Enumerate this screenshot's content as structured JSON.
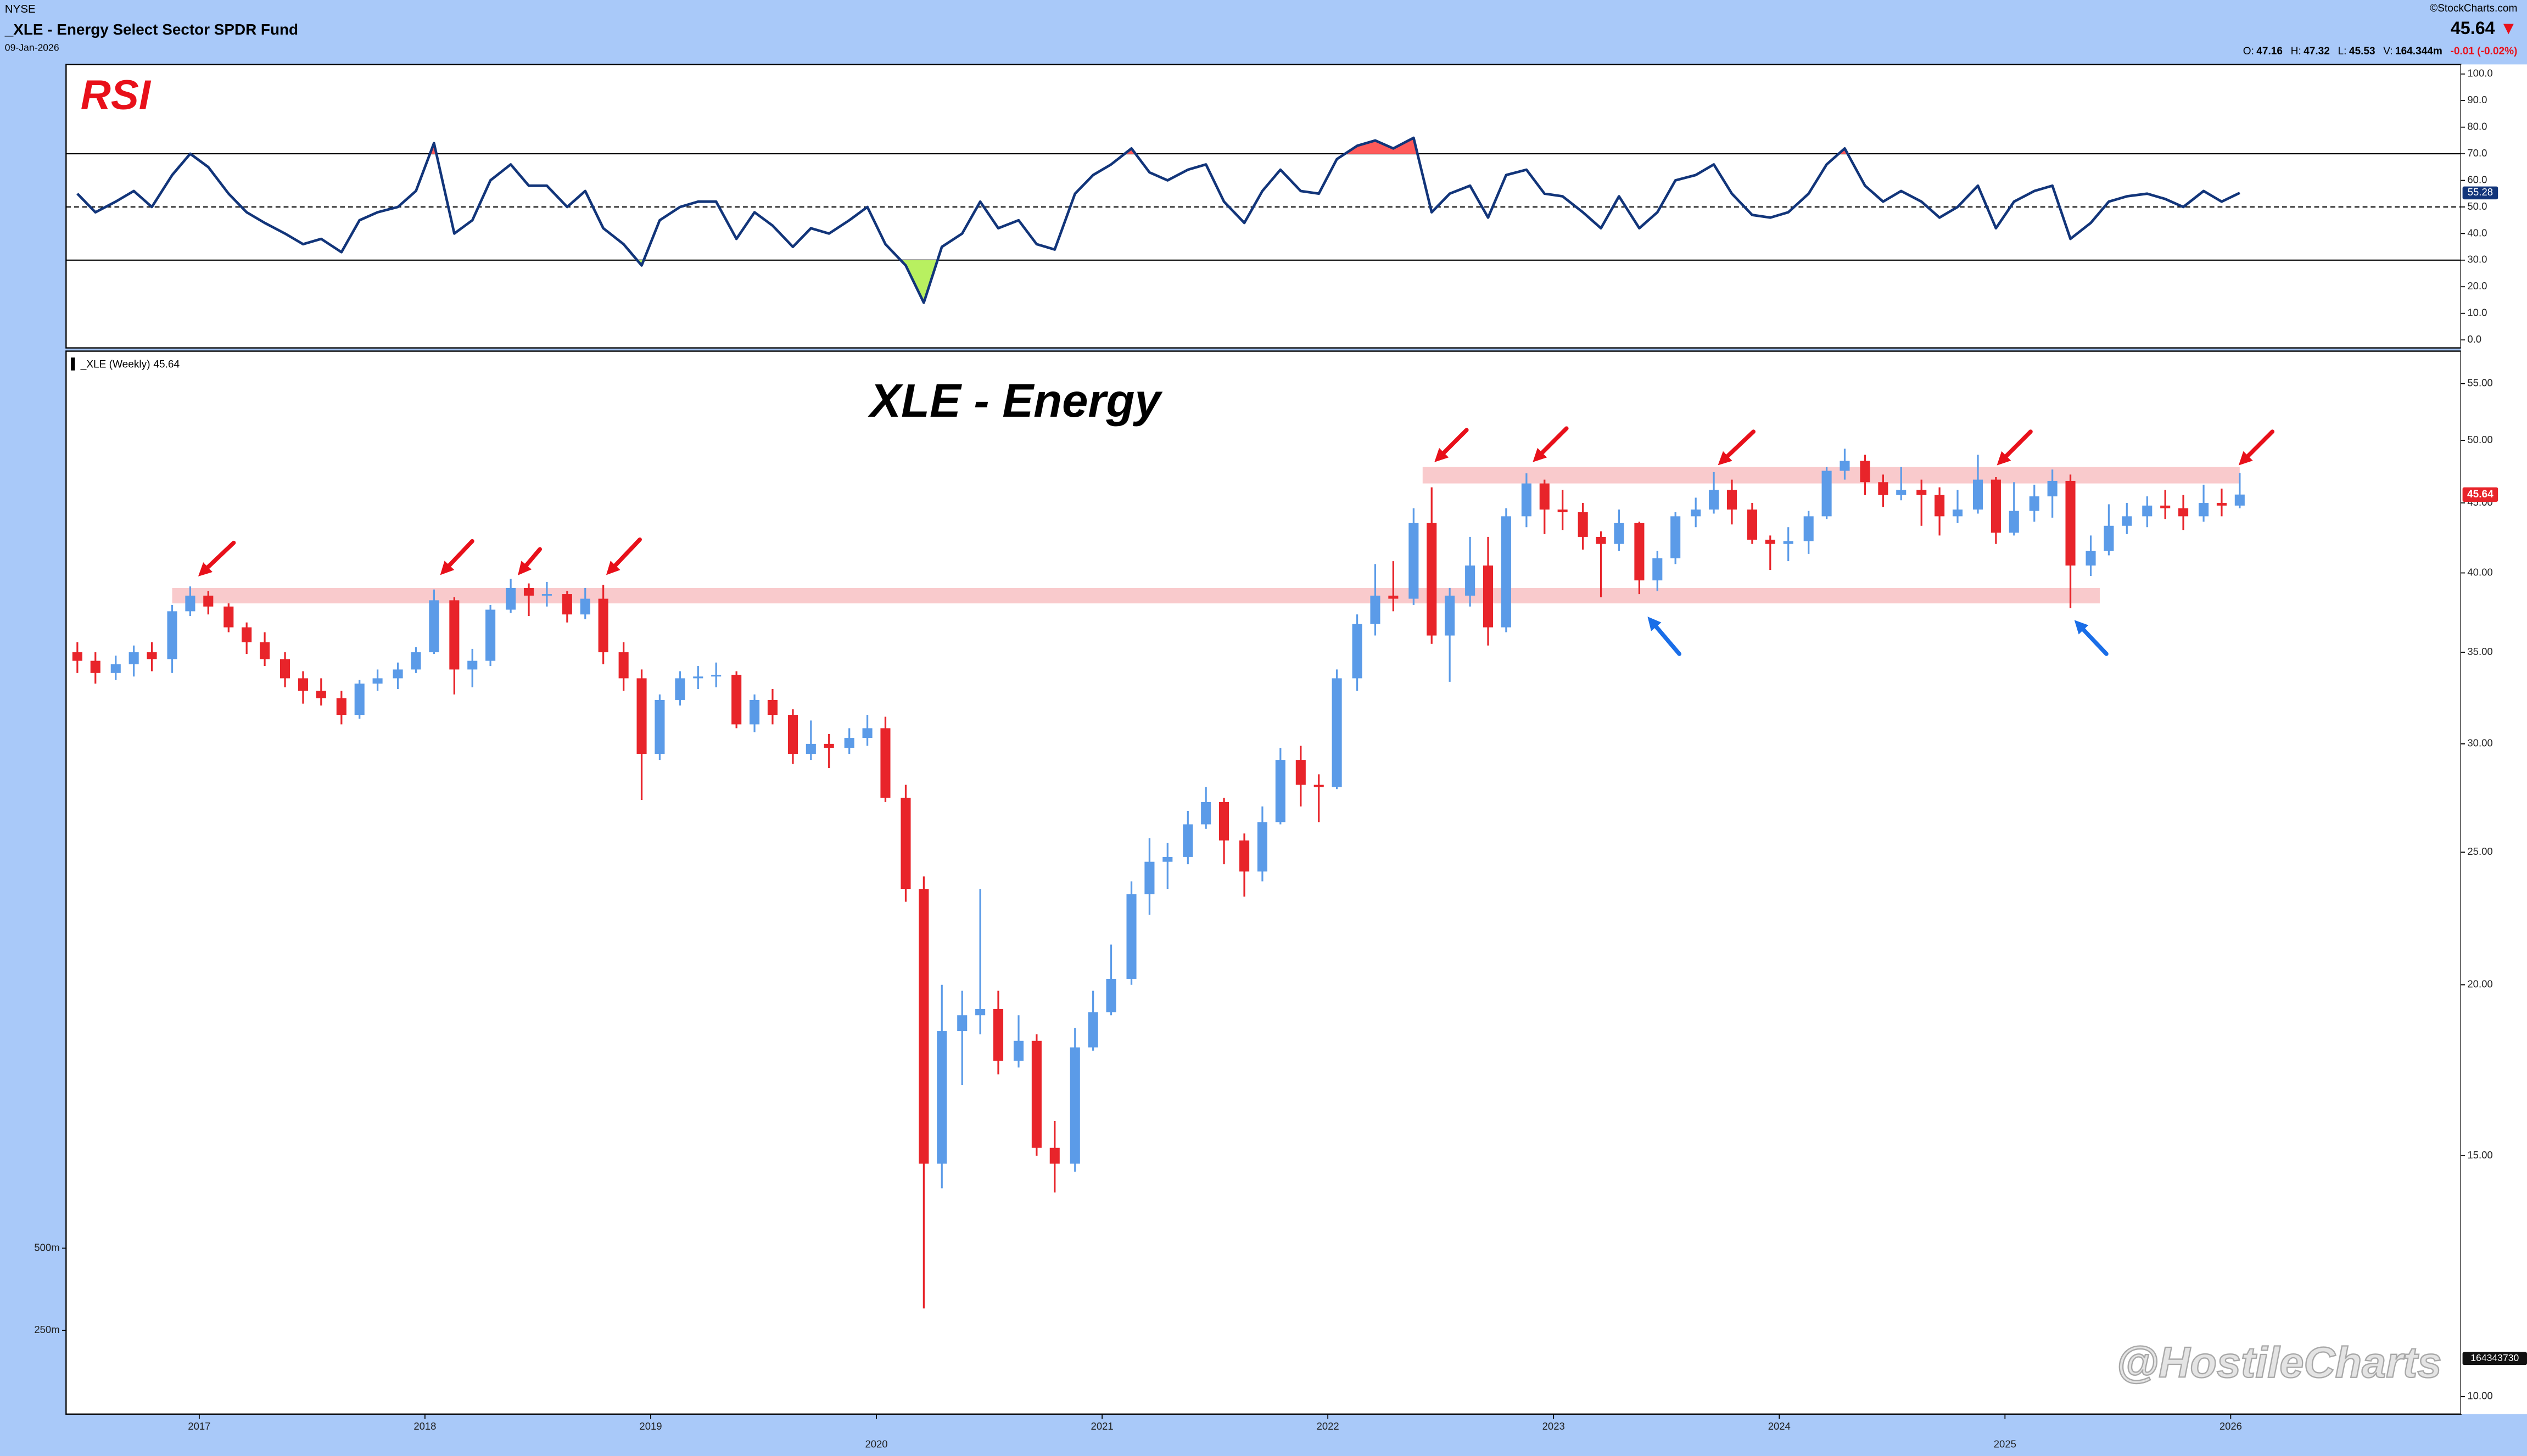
{
  "header": {
    "exchange": "NYSE",
    "title": "_XLE - Energy Select Sector SPDR Fund",
    "date": "09-Jan-2026",
    "source": "©StockCharts.com",
    "direction": "▼",
    "quote": [
      {
        "label": "O:",
        "value": 47.16
      },
      {
        "label": "H:",
        "value": 47.32
      },
      {
        "label": "L:",
        "value": 45.53
      },
      {
        "label": "V:",
        "value": "164.344m"
      }
    ],
    "change": "-0.01 (-0.02%)"
  },
  "chart_data": [
    {
      "type": "line",
      "title": "RSI",
      "series": [
        {
          "color": "#12357a",
          "values": [
            55,
            48,
            52,
            56,
            50,
            62,
            70,
            65,
            55,
            48,
            44,
            40,
            36,
            38,
            33,
            45,
            48,
            50,
            56,
            74,
            40,
            45,
            60,
            66,
            58,
            58,
            50,
            56,
            42,
            36,
            28,
            45,
            50,
            52,
            52,
            38,
            48,
            43,
            35,
            42,
            40,
            45,
            50,
            36,
            28,
            14,
            35,
            40,
            52,
            42,
            45,
            36,
            34,
            55,
            62,
            66,
            72,
            63,
            60,
            64,
            66,
            52,
            44,
            56,
            64,
            56,
            55,
            68,
            73,
            75,
            72,
            76,
            48,
            55,
            58,
            46,
            62,
            64,
            55,
            54,
            48,
            42,
            54,
            42,
            48,
            60,
            62,
            66,
            55,
            47,
            46,
            48,
            55,
            66,
            72,
            58,
            52,
            56,
            52,
            46,
            50,
            58,
            42,
            52,
            56,
            58,
            38,
            44,
            52,
            54,
            55,
            53,
            50,
            56,
            52,
            55.28
          ]
        }
      ],
      "ylim": [
        -3,
        103.6
      ],
      "yticks": [
        {
          "value": 0,
          "label": "0.0"
        },
        {
          "value": 10,
          "label": "10.0"
        },
        {
          "value": 20,
          "label": "20.0"
        },
        {
          "value": 30,
          "label": "30.0"
        },
        {
          "value": 40,
          "label": "40.0"
        },
        {
          "value": 50,
          "label": "50.0"
        },
        {
          "value": 60,
          "label": "60.0"
        },
        {
          "value": 70,
          "label": "70.0"
        },
        {
          "value": 80,
          "label": "80.0"
        },
        {
          "value": 90,
          "label": "90.0"
        },
        {
          "value": 100,
          "label": "100.0"
        }
      ],
      "oversold": 30,
      "midline": 50,
      "overbought": 70,
      "oversold_color": "#b8f060",
      "overbought_color": "#ff5a5a"
    },
    {
      "type": "candlestick",
      "title": "XLE - Energy",
      "legend": "_XLE (Weekly)",
      "x": [
        2016.46,
        2016.54,
        2016.63,
        2016.71,
        2016.79,
        2016.88,
        2016.96,
        2017.04,
        2017.13,
        2017.21,
        2017.29,
        2017.38,
        2017.46,
        2017.54,
        2017.63,
        2017.71,
        2017.79,
        2017.88,
        2017.96,
        2018.04,
        2018.13,
        2018.21,
        2018.29,
        2018.38,
        2018.46,
        2018.54,
        2018.63,
        2018.71,
        2018.79,
        2018.88,
        2018.96,
        2019.04,
        2019.13,
        2019.21,
        2019.29,
        2019.38,
        2019.46,
        2019.54,
        2019.63,
        2019.71,
        2019.79,
        2019.88,
        2019.96,
        2020.04,
        2020.13,
        2020.21,
        2020.29,
        2020.38,
        2020.46,
        2020.54,
        2020.63,
        2020.71,
        2020.79,
        2020.88,
        2020.96,
        2021.04,
        2021.13,
        2021.21,
        2021.29,
        2021.38,
        2021.46,
        2021.54,
        2021.63,
        2021.71,
        2021.79,
        2021.88,
        2021.96,
        2022.04,
        2022.13,
        2022.21,
        2022.29,
        2022.38,
        2022.46,
        2022.54,
        2022.63,
        2022.71,
        2022.79,
        2022.88,
        2022.96,
        2023.04,
        2023.13,
        2023.21,
        2023.29,
        2023.38,
        2023.46,
        2023.54,
        2023.63,
        2023.71,
        2023.79,
        2023.88,
        2023.96,
        2024.04,
        2024.13,
        2024.21,
        2024.29,
        2024.38,
        2024.46,
        2024.54,
        2024.63,
        2024.71,
        2024.79,
        2024.88,
        2024.96,
        2025.04,
        2025.13,
        2025.21,
        2025.29,
        2025.38,
        2025.46,
        2025.54,
        2025.63,
        2025.71,
        2025.79,
        2025.88,
        2025.96,
        2026.04
      ],
      "open": [
        35.0,
        34.5,
        33.8,
        34.3,
        35.0,
        34.6,
        37.5,
        38.5,
        37.8,
        36.5,
        35.6,
        34.6,
        33.5,
        32.8,
        32.4,
        31.5,
        33.2,
        33.5,
        34.0,
        35.0,
        38.2,
        34.0,
        34.5,
        37.6,
        39.0,
        38.5,
        38.6,
        37.3,
        38.3,
        35.0,
        33.5,
        29.5,
        32.3,
        33.5,
        33.6,
        33.7,
        31.0,
        32.3,
        31.5,
        29.5,
        30.0,
        29.8,
        30.3,
        30.8,
        27.4,
        23.5,
        14.8,
        18.5,
        19.0,
        19.2,
        17.6,
        18.2,
        15.2,
        14.8,
        18.0,
        19.1,
        20.2,
        23.3,
        24.6,
        24.8,
        26.2,
        27.2,
        25.5,
        24.2,
        26.3,
        29.2,
        28.0,
        27.9,
        33.5,
        36.7,
        38.5,
        38.3,
        43.5,
        36.0,
        38.5,
        40.5,
        36.5,
        44.0,
        46.5,
        44.5,
        44.3,
        42.5,
        42.0,
        43.5,
        39.5,
        41.0,
        44.0,
        44.5,
        46.0,
        44.5,
        42.3,
        42.0,
        42.2,
        44.0,
        47.5,
        48.3,
        46.6,
        45.6,
        46.0,
        45.6,
        44.0,
        44.5,
        46.8,
        42.8,
        44.4,
        45.5,
        46.7,
        40.5,
        41.5,
        43.3,
        44.0,
        44.8,
        44.6,
        44.0,
        45.0,
        44.8
      ],
      "high": [
        35.6,
        35.0,
        34.8,
        35.4,
        35.6,
        37.9,
        39.1,
        38.8,
        38.0,
        36.8,
        36.2,
        35.0,
        33.9,
        33.5,
        32.8,
        33.4,
        34.0,
        34.4,
        35.3,
        38.9,
        38.4,
        35.2,
        37.9,
        39.6,
        39.3,
        39.4,
        38.8,
        39.0,
        39.2,
        35.6,
        34.0,
        32.6,
        33.9,
        34.2,
        34.4,
        33.9,
        32.6,
        32.9,
        31.8,
        31.2,
        30.5,
        30.8,
        31.5,
        31.4,
        28.0,
        24.0,
        20.0,
        19.8,
        23.5,
        19.8,
        19.0,
        18.4,
        15.9,
        18.6,
        19.8,
        21.4,
        23.8,
        25.6,
        25.4,
        26.8,
        27.9,
        27.4,
        25.8,
        27.0,
        29.8,
        29.9,
        28.5,
        34.0,
        37.3,
        40.6,
        40.8,
        44.6,
        46.2,
        39.0,
        42.5,
        42.5,
        44.6,
        47.3,
        46.8,
        46.0,
        45.0,
        42.9,
        44.5,
        43.6,
        41.5,
        44.3,
        45.4,
        47.4,
        46.8,
        45.0,
        42.6,
        43.2,
        44.4,
        47.8,
        49.3,
        48.8,
        47.2,
        47.8,
        46.8,
        46.2,
        46.0,
        48.8,
        47.0,
        46.6,
        46.4,
        47.6,
        47.2,
        42.6,
        44.9,
        45.0,
        45.5,
        46.0,
        45.6,
        46.4,
        46.1,
        47.32
      ],
      "low": [
        33.8,
        33.2,
        33.4,
        33.6,
        33.9,
        33.8,
        37.2,
        37.3,
        36.2,
        34.9,
        34.2,
        33.0,
        32.1,
        32.0,
        31.0,
        31.3,
        32.8,
        32.9,
        33.8,
        34.9,
        32.6,
        33.0,
        34.2,
        37.4,
        37.2,
        37.8,
        36.8,
        37.0,
        34.3,
        32.8,
        27.3,
        29.2,
        32.0,
        32.9,
        33.0,
        30.8,
        30.6,
        31.0,
        29.0,
        29.2,
        28.8,
        29.5,
        29.9,
        27.2,
        23.0,
        11.6,
        14.2,
        16.9,
        18.4,
        17.2,
        17.4,
        15.0,
        14.1,
        14.6,
        17.9,
        19.0,
        20.0,
        22.5,
        23.5,
        24.5,
        26.0,
        24.5,
        23.2,
        23.8,
        26.2,
        27.0,
        26.3,
        27.8,
        32.8,
        36.0,
        37.5,
        37.9,
        35.5,
        33.3,
        37.8,
        35.4,
        36.2,
        43.2,
        42.7,
        43.0,
        41.6,
        38.4,
        41.5,
        38.6,
        38.8,
        40.6,
        43.2,
        44.2,
        43.4,
        42.0,
        40.2,
        40.8,
        41.3,
        43.8,
        46.8,
        45.6,
        44.7,
        45.2,
        43.3,
        42.6,
        43.5,
        44.2,
        42.0,
        42.6,
        43.6,
        43.9,
        37.7,
        39.8,
        41.2,
        42.7,
        43.2,
        43.8,
        43.0,
        43.6,
        44.0,
        44.6
      ],
      "close": [
        34.5,
        33.8,
        34.3,
        35.0,
        34.6,
        37.5,
        38.5,
        37.8,
        36.5,
        35.6,
        34.6,
        33.5,
        32.8,
        32.4,
        31.5,
        33.2,
        33.5,
        34.0,
        35.0,
        38.2,
        34.0,
        34.5,
        37.6,
        39.0,
        38.5,
        38.6,
        37.3,
        38.3,
        35.0,
        33.5,
        29.5,
        32.3,
        33.5,
        33.6,
        33.7,
        31.0,
        32.3,
        31.5,
        29.5,
        30.0,
        29.8,
        30.3,
        30.8,
        27.4,
        23.5,
        14.8,
        18.5,
        19.0,
        19.2,
        17.6,
        18.2,
        15.2,
        14.8,
        18.0,
        19.1,
        20.2,
        23.3,
        24.6,
        24.8,
        26.2,
        27.2,
        25.5,
        24.2,
        26.3,
        29.2,
        28.0,
        27.9,
        33.5,
        36.7,
        38.5,
        38.3,
        43.5,
        36.0,
        38.5,
        40.5,
        36.5,
        44.0,
        46.5,
        44.5,
        44.3,
        42.5,
        42.0,
        43.5,
        39.5,
        41.0,
        44.0,
        44.5,
        46.0,
        44.5,
        42.3,
        42.0,
        42.2,
        44.0,
        47.5,
        48.3,
        46.6,
        45.6,
        46.0,
        45.6,
        44.0,
        44.5,
        46.8,
        42.8,
        44.4,
        45.5,
        46.7,
        40.5,
        41.5,
        43.3,
        44.0,
        44.8,
        44.6,
        44.0,
        45.0,
        44.8,
        45.64
      ],
      "up_color": "#5b9be8",
      "down_color": "#e8242a",
      "log_scale": true,
      "xlim": [
        2016.41,
        2027.02
      ],
      "ylim": [
        9.71,
        58.1
      ],
      "xticks": [
        2017,
        2018,
        2019,
        2020,
        2021,
        2022,
        2023,
        2024,
        2025,
        2026
      ],
      "yticks": [
        {
          "value": 10,
          "label": "10.00"
        },
        {
          "value": 15,
          "label": "15.00"
        },
        {
          "value": 20,
          "label": "20.00"
        },
        {
          "value": 25,
          "label": "25.00"
        },
        {
          "value": 30,
          "label": "30.00"
        },
        {
          "value": 35,
          "label": "35.00"
        },
        {
          "value": 40,
          "label": "40.00"
        },
        {
          "value": 45,
          "label": "45.00"
        },
        {
          "value": 50,
          "label": "50.00"
        },
        {
          "value": 55,
          "label": "55.00"
        }
      ],
      "zones": [
        {
          "low": 38.0,
          "high": 39.0,
          "x0": 2016.88,
          "x1": 2025.42
        },
        {
          "low": 46.5,
          "high": 47.8,
          "x0": 2022.42,
          "x1": 2026.04
        }
      ],
      "zone_color": "#f8c4c6",
      "volume_ylim": [
        -5000000,
        3230000000
      ],
      "volume_ticks": [
        {
          "value": 500000000,
          "label": "500m"
        },
        {
          "value": 250000000,
          "label": "250m"
        }
      ],
      "volume_last": 164343730,
      "watermark": "@HostileCharts"
    }
  ]
}
